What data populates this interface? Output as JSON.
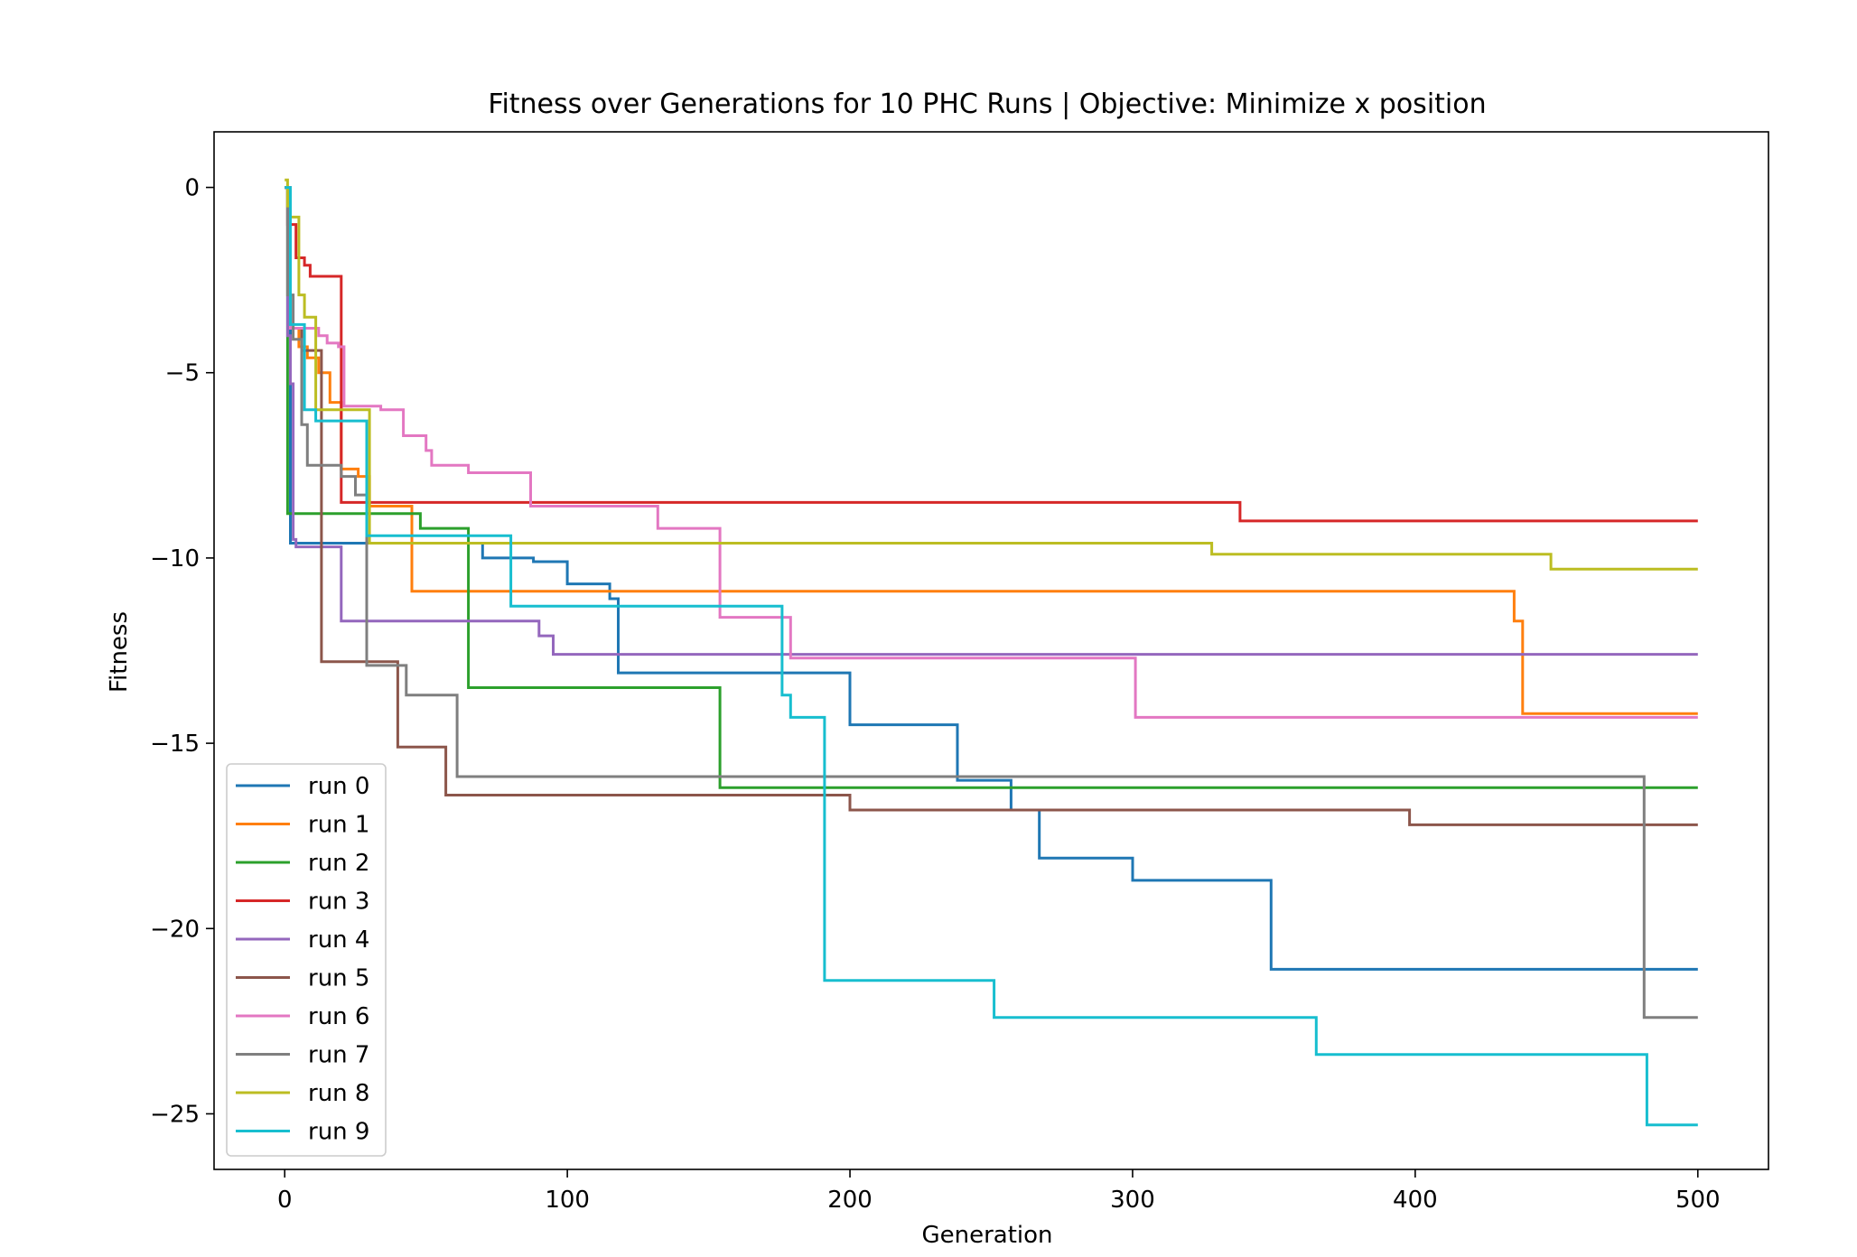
{
  "chart_data": {
    "type": "line",
    "title": "Fitness over Generations for 10 PHC Runs | Objective: Minimize x position",
    "xlabel": "Generation",
    "ylabel": "Fitness",
    "xlim": [
      -25,
      525
    ],
    "ylim": [
      -26.5,
      1.5
    ],
    "xticks": [
      0,
      100,
      200,
      300,
      400,
      500
    ],
    "xtick_labels": [
      "0",
      "100",
      "200",
      "300",
      "400",
      "500"
    ],
    "yticks": [
      0,
      -5,
      -10,
      -15,
      -20,
      -25
    ],
    "ytick_labels": [
      "0",
      "−5",
      "−10",
      "−15",
      "−20",
      "−25"
    ],
    "grid": false,
    "legend_position": "lower left",
    "series": [
      {
        "name": "run 0",
        "color": "#1f77b4",
        "step": true,
        "x": [
          0,
          2,
          4,
          70,
          88,
          100,
          115,
          118,
          200,
          238,
          257,
          267,
          300,
          349,
          500
        ],
        "y": [
          0,
          -9.6,
          -9.6,
          -10.0,
          -10.1,
          -10.7,
          -11.1,
          -13.1,
          -14.5,
          -16.0,
          -16.8,
          -18.1,
          -18.7,
          -21.1,
          -21.1
        ]
      },
      {
        "name": "run 1",
        "color": "#ff7f0e",
        "step": true,
        "x": [
          0,
          2,
          5,
          8,
          12,
          16,
          20,
          26,
          30,
          45,
          435,
          438,
          500
        ],
        "y": [
          0,
          -3.8,
          -4.3,
          -4.6,
          -5.0,
          -5.8,
          -7.6,
          -7.8,
          -8.6,
          -10.9,
          -11.7,
          -14.2,
          -14.2
        ]
      },
      {
        "name": "run 2",
        "color": "#2ca02c",
        "step": true,
        "x": [
          0,
          1,
          48,
          65,
          154,
          500
        ],
        "y": [
          0,
          -8.8,
          -9.2,
          -13.5,
          -16.2,
          -16.2
        ]
      },
      {
        "name": "run 3",
        "color": "#d62728",
        "step": true,
        "x": [
          0,
          1,
          4,
          7,
          9,
          20,
          338,
          500
        ],
        "y": [
          0,
          -1.0,
          -1.9,
          -2.1,
          -2.4,
          -8.5,
          -9.0,
          -9.0
        ]
      },
      {
        "name": "run 4",
        "color": "#9467bd",
        "step": true,
        "x": [
          0,
          1,
          2,
          3,
          4,
          20,
          90,
          95,
          500
        ],
        "y": [
          0,
          -4.0,
          -5.3,
          -9.5,
          -9.7,
          -11.7,
          -12.1,
          -12.6,
          -12.6
        ]
      },
      {
        "name": "run 5",
        "color": "#8c564b",
        "step": true,
        "x": [
          0,
          2,
          6,
          13,
          40,
          57,
          200,
          398,
          500
        ],
        "y": [
          0,
          -3.8,
          -4.4,
          -12.8,
          -15.1,
          -16.4,
          -16.8,
          -17.2,
          -17.2
        ]
      },
      {
        "name": "run 6",
        "color": "#e377c2",
        "step": true,
        "x": [
          0,
          2,
          12,
          15,
          19,
          21,
          34,
          42,
          50,
          52,
          65,
          87,
          132,
          154,
          179,
          301,
          500
        ],
        "y": [
          0,
          -3.8,
          -4.0,
          -4.2,
          -4.3,
          -5.9,
          -6.0,
          -6.7,
          -7.1,
          -7.5,
          -7.7,
          -8.6,
          -9.2,
          -11.6,
          -12.7,
          -14.3,
          -14.3
        ]
      },
      {
        "name": "run 7",
        "color": "#7f7f7f",
        "step": true,
        "x": [
          0,
          1,
          3,
          6,
          8,
          20,
          25,
          29,
          43,
          61,
          481,
          500
        ],
        "y": [
          0,
          -2.9,
          -4.1,
          -6.4,
          -7.5,
          -7.8,
          -8.3,
          -12.9,
          -13.7,
          -15.9,
          -22.4,
          -22.4
        ]
      },
      {
        "name": "run 8",
        "color": "#bcbd22",
        "step": true,
        "x": [
          0,
          1,
          2,
          5,
          7,
          11,
          30,
          328,
          448,
          500
        ],
        "y": [
          0.2,
          -0.5,
          -0.8,
          -2.9,
          -3.5,
          -6.0,
          -9.6,
          -9.9,
          -10.3,
          -10.3
        ]
      },
      {
        "name": "run 9",
        "color": "#17becf",
        "step": true,
        "x": [
          0,
          2,
          7,
          11,
          29,
          80,
          176,
          179,
          183,
          191,
          251,
          365,
          482,
          500
        ],
        "y": [
          0,
          -3.7,
          -6.0,
          -6.3,
          -9.4,
          -11.3,
          -13.7,
          -14.3,
          -14.3,
          -21.4,
          -22.4,
          -23.4,
          -25.3,
          -25.3
        ]
      }
    ]
  }
}
